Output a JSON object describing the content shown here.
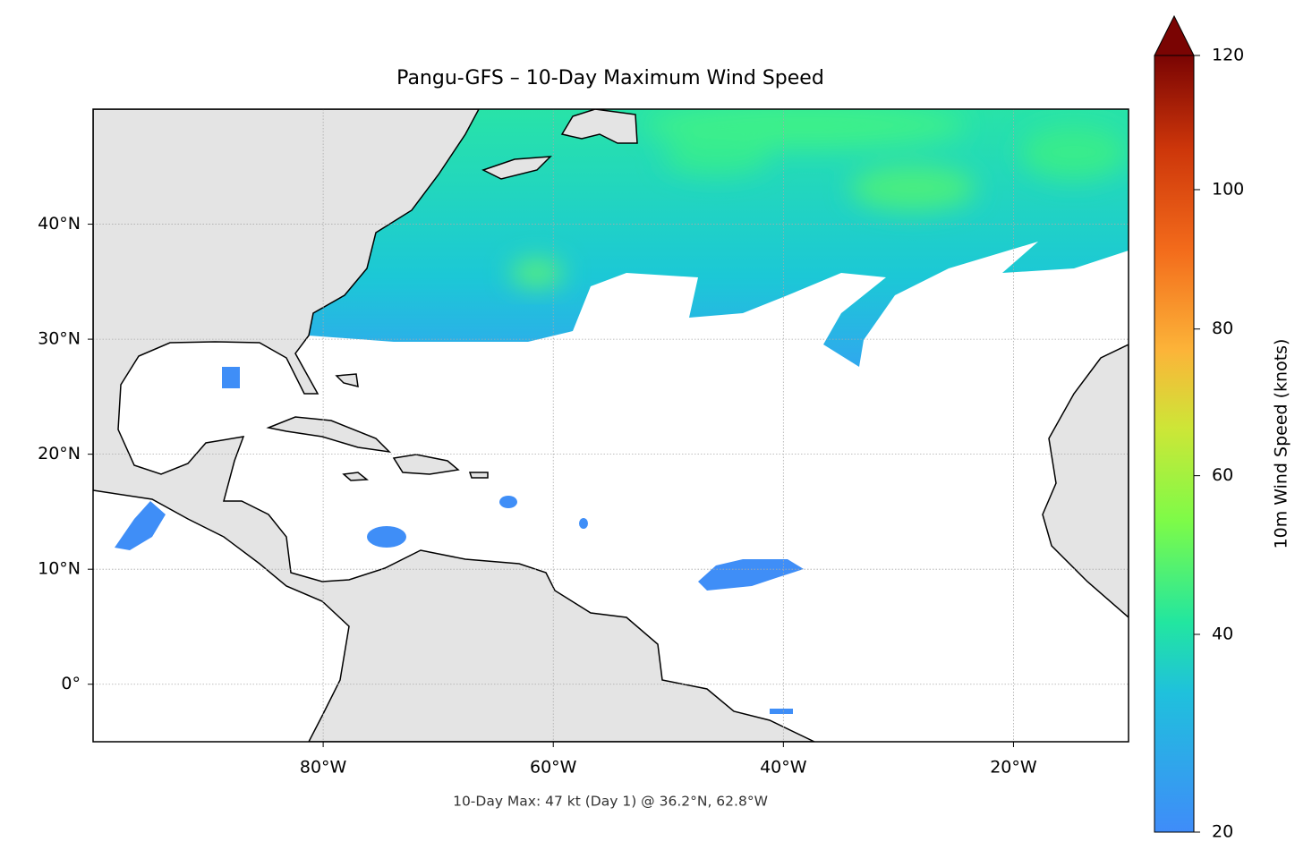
{
  "map": {
    "title": "Pangu-GFS – 10-Day Maximum Wind Speed",
    "footnote": "10-Day Max: 47 kt (Day 1) @ 36.2°N, 62.8°W",
    "xlim": [
      -100,
      -10
    ],
    "ylim": [
      -5,
      50
    ],
    "xticks": [
      {
        "value": -80,
        "label": "80°W"
      },
      {
        "value": -60,
        "label": "60°W"
      },
      {
        "value": -40,
        "label": "40°W"
      },
      {
        "value": -20,
        "label": "20°W"
      }
    ],
    "yticks": [
      {
        "value": 0,
        "label": "0°"
      },
      {
        "value": 10,
        "label": "10°N"
      },
      {
        "value": 20,
        "label": "20°N"
      },
      {
        "value": 30,
        "label": "30°N"
      },
      {
        "value": 40,
        "label": "40°N"
      }
    ]
  },
  "colorbar": {
    "label": "10m Wind Speed (knots)",
    "lim": [
      20,
      120
    ],
    "ticks": [
      20,
      40,
      60,
      80,
      100,
      120
    ]
  }
}
